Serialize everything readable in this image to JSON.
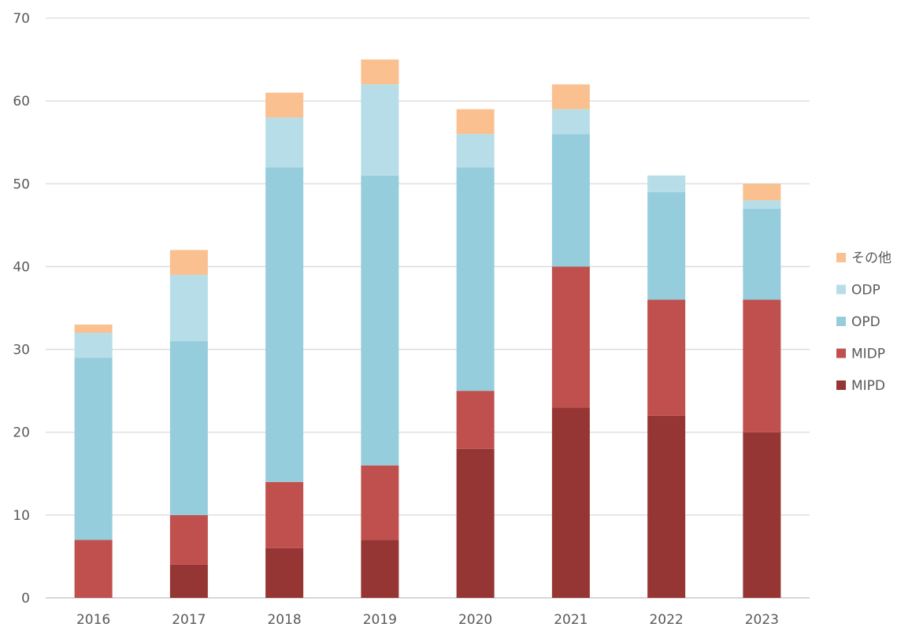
{
  "chart_data": {
    "type": "bar",
    "stacked": true,
    "categories": [
      "2016",
      "2017",
      "2018",
      "2019",
      "2020",
      "2021",
      "2022",
      "2023"
    ],
    "series": [
      {
        "name": "MIPD",
        "color": "#963634",
        "values": [
          0,
          4,
          6,
          7,
          18,
          23,
          22,
          20
        ]
      },
      {
        "name": "MIDP",
        "color": "#C0504D",
        "values": [
          7,
          6,
          8,
          9,
          7,
          17,
          14,
          16
        ]
      },
      {
        "name": "OPD",
        "color": "#96CDDD",
        "values": [
          22,
          21,
          38,
          35,
          27,
          16,
          13,
          11
        ]
      },
      {
        "name": "ODP",
        "color": "#B7DEE8",
        "values": [
          3,
          8,
          6,
          11,
          4,
          3,
          2,
          1
        ]
      },
      {
        "name": "その他",
        "color": "#FAC090",
        "values": [
          1,
          3,
          3,
          3,
          3,
          3,
          0,
          2
        ]
      }
    ],
    "ylim": [
      0,
      70
    ],
    "yticks": [
      "0",
      "10",
      "20",
      "30",
      "40",
      "50",
      "60",
      "70"
    ],
    "grid": true,
    "legend_position": "right",
    "legend_order": [
      "その他",
      "ODP",
      "OPD",
      "MIDP",
      "MIPD"
    ]
  }
}
